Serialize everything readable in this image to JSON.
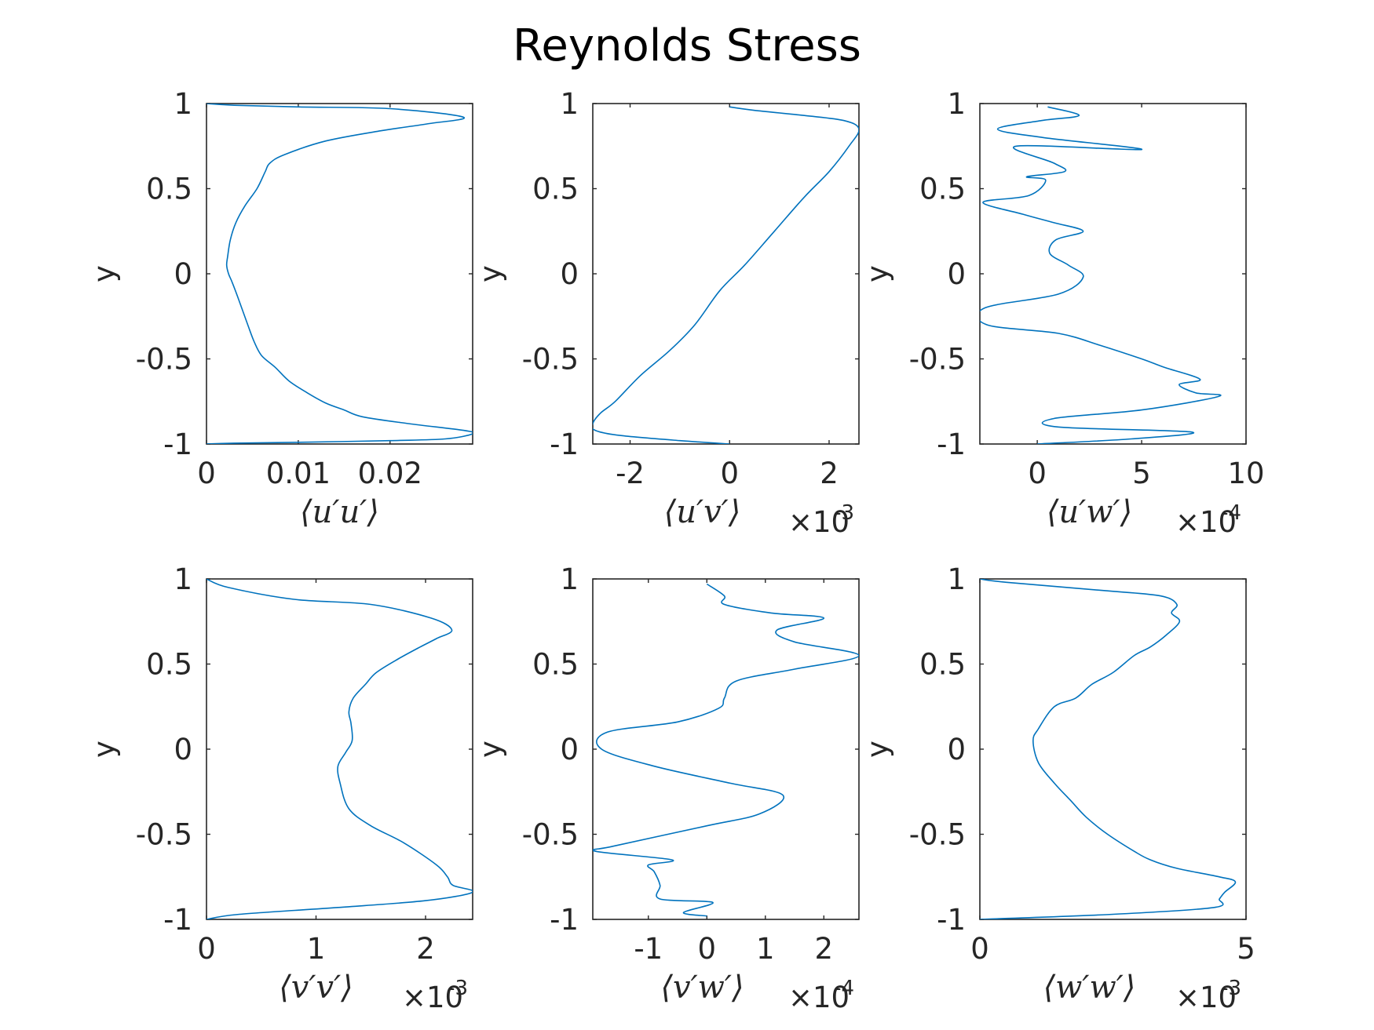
{
  "figure_title": "Reynolds Stress",
  "line_color": "#0072bd",
  "chart_data": [
    {
      "type": "line",
      "xlabel": "⟨u′u′⟩",
      "exponent": "",
      "ylabel": "y",
      "xlim": [
        0,
        0.029
      ],
      "ylim": [
        -1,
        1
      ],
      "xticks": [
        0,
        0.01,
        0.02
      ],
      "xtick_labels": [
        "0",
        "0.01",
        "0.02"
      ],
      "yticks": [
        -1,
        -0.5,
        0,
        0.5,
        1
      ],
      "ytick_labels": [
        "-1",
        "-0.5",
        "0",
        "0.5",
        "1"
      ],
      "grid": false,
      "x": [
        0,
        0.003,
        0.01,
        0.02,
        0.026,
        0.029,
        0.028,
        0.022,
        0.017,
        0.015,
        0.013,
        0.011,
        0.009,
        0.0075,
        0.006,
        0.0052,
        0.0045,
        0.0035,
        0.0028,
        0.0024,
        0.0022,
        0.0023,
        0.0026,
        0.0032,
        0.0042,
        0.0055,
        0.0064,
        0.0069,
        0.0085,
        0.013,
        0.019,
        0.024,
        0.028,
        0.02,
        0.01,
        0.003,
        0
      ],
      "y": [
        -1,
        -0.995,
        -0.99,
        -0.98,
        -0.97,
        -0.94,
        -0.92,
        -0.88,
        -0.84,
        -0.8,
        -0.76,
        -0.7,
        -0.63,
        -0.55,
        -0.48,
        -0.4,
        -0.3,
        -0.15,
        -0.05,
        0,
        0.05,
        0.1,
        0.2,
        0.3,
        0.4,
        0.5,
        0.6,
        0.65,
        0.7,
        0.78,
        0.84,
        0.88,
        0.92,
        0.97,
        0.98,
        0.99,
        1
      ],
      "yscale_note": ""
    },
    {
      "type": "line",
      "xlabel": "⟨u′v′⟩",
      "exponent": "-3",
      "ylabel": "y",
      "xlim": [
        -2.75,
        2.6
      ],
      "ylim": [
        -1,
        1
      ],
      "xticks": [
        -2,
        0,
        2
      ],
      "xtick_labels": [
        "-2",
        "0",
        "2"
      ],
      "yticks": [
        -1,
        -0.5,
        0,
        0.5,
        1
      ],
      "ytick_labels": [
        "-1",
        "-0.5",
        "0",
        "0.5",
        "1"
      ],
      "grid": false,
      "x": [
        0,
        -1,
        -2.2,
        -2.7,
        -2.75,
        -2.6,
        -2.3,
        -1.8,
        -1.2,
        -0.7,
        -0.2,
        0.3,
        0.9,
        1.5,
        2.0,
        2.4,
        2.6,
        2.3,
        1.5,
        0.5,
        0
      ],
      "y": [
        -1,
        -0.98,
        -0.95,
        -0.92,
        -0.88,
        -0.82,
        -0.75,
        -0.6,
        -0.45,
        -0.3,
        -0.1,
        0.05,
        0.25,
        0.45,
        0.6,
        0.75,
        0.85,
        0.9,
        0.93,
        0.96,
        0.98
      ],
      "yscale_note": ""
    },
    {
      "type": "line",
      "xlabel": "⟨u′w′⟩",
      "exponent": "-4",
      "ylabel": "y",
      "xlim": [
        -2.75,
        10
      ],
      "ylim": [
        -1,
        1
      ],
      "xticks": [
        0,
        5,
        10
      ],
      "xtick_labels": [
        "0",
        "5",
        "10"
      ],
      "yticks": [
        -1,
        -0.5,
        0,
        0.5,
        1
      ],
      "ytick_labels": [
        "-1",
        "-0.5",
        "0",
        "0.5",
        "1"
      ],
      "grid": false,
      "x": [
        0,
        4.5,
        7.4,
        1,
        0.8,
        5,
        8.7,
        7.6,
        6.8,
        7.8,
        6.1,
        5,
        3,
        1,
        -2.4,
        -2.5,
        1,
        2.2,
        1.5,
        0.6,
        0.9,
        2.2,
        0.8,
        -0.7,
        -2.6,
        -0.4,
        0.4,
        -0.5,
        1.3,
        0.8,
        -1,
        5,
        0.3,
        -1.9,
        0.2,
        2,
        0.5
      ],
      "y": [
        -1,
        -0.97,
        -0.93,
        -0.9,
        -0.85,
        -0.8,
        -0.72,
        -0.7,
        -0.65,
        -0.62,
        -0.55,
        -0.5,
        -0.42,
        -0.35,
        -0.3,
        -0.2,
        -0.12,
        -0.02,
        0.05,
        0.12,
        0.2,
        0.25,
        0.3,
        0.35,
        0.42,
        0.46,
        0.55,
        0.57,
        0.6,
        0.65,
        0.75,
        0.73,
        0.8,
        0.85,
        0.9,
        0.93,
        0.98
      ],
      "yscale_note": ""
    },
    {
      "type": "line",
      "xlabel": "⟨v′v′⟩",
      "exponent": "-3",
      "ylabel": "y",
      "xlim": [
        0,
        2.43
      ],
      "ylim": [
        -1,
        1
      ],
      "xticks": [
        0,
        1,
        2
      ],
      "xtick_labels": [
        "0",
        "1",
        "2"
      ],
      "yticks": [
        -1,
        -0.5,
        0,
        0.5,
        1
      ],
      "ytick_labels": [
        "-1",
        "-0.5",
        "0",
        "0.5",
        "1"
      ],
      "grid": false,
      "x": [
        0,
        0.3,
        1.2,
        2.0,
        2.43,
        2.25,
        2.2,
        2.1,
        1.8,
        1.5,
        1.3,
        1.22,
        1.2,
        1.27,
        1.33,
        1.32,
        1.3,
        1.34,
        1.45,
        1.55,
        1.75,
        1.95,
        2.1,
        2.24,
        2.05,
        1.5,
        0.8,
        0.2,
        0
      ],
      "y": [
        -1,
        -0.97,
        -0.93,
        -0.89,
        -0.84,
        -0.8,
        -0.75,
        -0.68,
        -0.55,
        -0.45,
        -0.35,
        -0.2,
        -0.1,
        -0.02,
        0.05,
        0.15,
        0.22,
        0.3,
        0.38,
        0.45,
        0.53,
        0.6,
        0.65,
        0.7,
        0.77,
        0.85,
        0.88,
        0.95,
        1
      ],
      "yscale_note": ""
    },
    {
      "type": "line",
      "xlabel": "⟨v′w′⟩",
      "exponent": "-4",
      "ylabel": "y",
      "xlim": [
        -1.95,
        2.6
      ],
      "ylim": [
        -1,
        1
      ],
      "xticks": [
        -1,
        0,
        1,
        2
      ],
      "xtick_labels": [
        "-1",
        "0",
        "1",
        "2"
      ],
      "yticks": [
        -1,
        -0.5,
        0,
        0.5,
        1
      ],
      "ytick_labels": [
        "-1",
        "-0.5",
        "0",
        "0.5",
        "1"
      ],
      "grid": false,
      "x": [
        0,
        -0.4,
        0.1,
        -0.8,
        -0.8,
        -0.9,
        -1.0,
        -0.6,
        -1.9,
        -1.6,
        0,
        0.9,
        1.3,
        0.4,
        -0.9,
        -1.8,
        -1.7,
        -0.5,
        0.2,
        0.3,
        0.5,
        1.5,
        2.6,
        1.5,
        1.2,
        2.0,
        1.1,
        0.3,
        0.3,
        0
      ],
      "y": [
        -0.98,
        -0.96,
        -0.9,
        -0.88,
        -0.8,
        -0.72,
        -0.68,
        -0.65,
        -0.6,
        -0.57,
        -0.45,
        -0.38,
        -0.27,
        -0.2,
        -0.1,
        0,
        0.1,
        0.16,
        0.24,
        0.3,
        0.4,
        0.47,
        0.55,
        0.63,
        0.7,
        0.77,
        0.8,
        0.85,
        0.9,
        0.97
      ],
      "yscale_note": ""
    },
    {
      "type": "line",
      "xlabel": "⟨w′w′⟩",
      "exponent": "-3",
      "ylabel": "y",
      "xlim": [
        0,
        5
      ],
      "ylim": [
        -1,
        1
      ],
      "xticks": [
        0,
        5
      ],
      "xtick_labels": [
        "0",
        "5"
      ],
      "yticks": [
        -1,
        -0.5,
        0,
        0.5,
        1
      ],
      "ytick_labels": [
        "-1",
        "-0.5",
        "0",
        "0.5",
        "1"
      ],
      "grid": false,
      "x": [
        0,
        2.5,
        4.4,
        4.5,
        4.6,
        4.8,
        4.5,
        3.7,
        3.2,
        2.9,
        2.4,
        2.0,
        1.7,
        1.4,
        1.1,
        1.0,
        1.1,
        1.4,
        1.8,
        2.1,
        2.5,
        2.9,
        3.2,
        3.5,
        3.75,
        3.6,
        3.7,
        3.4,
        2.4,
        0.5,
        0
      ],
      "y": [
        -1,
        -0.97,
        -0.93,
        -0.88,
        -0.84,
        -0.78,
        -0.75,
        -0.7,
        -0.65,
        -0.6,
        -0.5,
        -0.4,
        -0.3,
        -0.2,
        -0.08,
        0.05,
        0.12,
        0.25,
        0.3,
        0.38,
        0.45,
        0.55,
        0.6,
        0.67,
        0.75,
        0.8,
        0.85,
        0.9,
        0.93,
        0.98,
        1
      ],
      "yscale_note": ""
    }
  ]
}
